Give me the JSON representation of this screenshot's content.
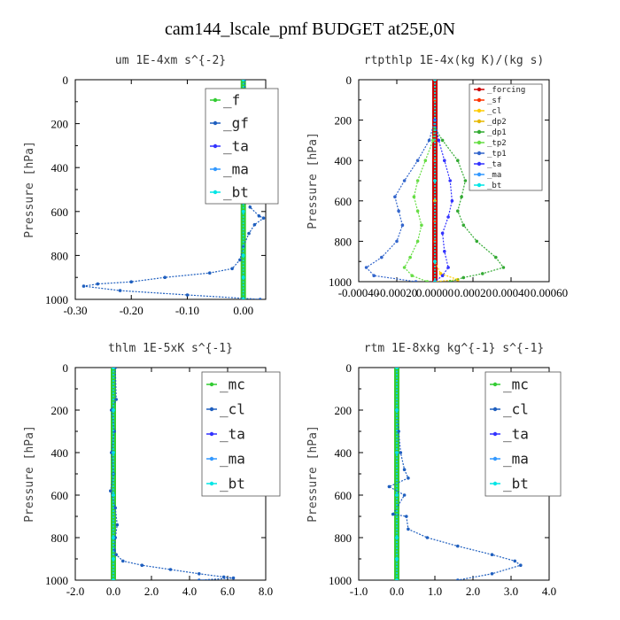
{
  "title": "cam144_lscale_pmf  BUDGET at25E,0N",
  "chart_data": [
    {
      "type": "line",
      "title": "um   1E-4xm  s^{-2}",
      "ylabel": "Pressure [hPa]",
      "xlim": [
        -0.3,
        0.04
      ],
      "ylim": [
        1000,
        0
      ],
      "xticks": [
        "-0.30",
        "-0.20",
        "-0.10",
        "0.00"
      ],
      "xtick_values": [
        -0.3,
        -0.2,
        -0.1,
        0.0
      ],
      "yticks": [
        "0",
        "200",
        "400",
        "600",
        "800",
        "1000"
      ],
      "ytick_values": [
        0,
        200,
        400,
        600,
        800,
        1000
      ],
      "legend_position": "top-right",
      "legend_font": 16,
      "series": [
        {
          "name": "_f",
          "color": "#33cc33",
          "x": [
            0.0,
            0.0,
            0.0,
            0.0,
            0.0,
            0.0,
            0.0,
            0.0,
            0.0,
            0.0,
            0.0
          ],
          "y": [
            0,
            100,
            200,
            300,
            400,
            500,
            600,
            700,
            800,
            900,
            1000
          ]
        },
        {
          "name": "_gf",
          "color": "#1f5fbf",
          "x": [
            0.002,
            0.004,
            0.018,
            0.032,
            0.03,
            0.014,
            -0.01,
            -0.01,
            0.005,
            0.01,
            0.003,
            0.012,
            0.028,
            0.036,
            0.02,
            0.01,
            0.0,
            -0.006,
            -0.02,
            -0.06,
            -0.14,
            -0.2,
            -0.26,
            -0.285,
            -0.22,
            -0.1,
            0.03
          ],
          "y": [
            0,
            80,
            110,
            130,
            160,
            200,
            240,
            300,
            360,
            420,
            500,
            580,
            620,
            630,
            660,
            700,
            760,
            820,
            860,
            880,
            900,
            920,
            930,
            940,
            960,
            980,
            1000
          ]
        },
        {
          "name": "_ta",
          "color": "#3333ff",
          "x": [
            0.0,
            0.0,
            0.0,
            0.0,
            0.0,
            0.0,
            0.0
          ],
          "y": [
            0,
            200,
            400,
            600,
            800,
            900,
            1000
          ]
        },
        {
          "name": "_ma",
          "color": "#3399ff",
          "x": [
            0.0,
            0.0,
            0.0,
            0.0,
            0.0,
            0.0,
            0.0
          ],
          "y": [
            0,
            200,
            400,
            600,
            800,
            900,
            1000
          ]
        },
        {
          "name": "_bt",
          "color": "#00e6e6",
          "x": [
            0.0,
            0.0,
            0.0,
            0.0,
            0.0,
            0.0,
            0.0
          ],
          "y": [
            0,
            200,
            400,
            600,
            800,
            900,
            1000
          ]
        }
      ]
    },
    {
      "type": "line",
      "title": "rtpthlp   1E-4x(kg K)/(kg s)",
      "ylabel": "Pressure [hPa]",
      "xlim": [
        -0.0004,
        0.0006
      ],
      "ylim": [
        1000,
        0
      ],
      "xticks": [
        "-0.00040",
        "-0.00020",
        "0.00000",
        "0.00020",
        "0.00040",
        "0.00060"
      ],
      "xtick_values": [
        -0.0004,
        -0.0002,
        0.0,
        0.0002,
        0.0004,
        0.0006
      ],
      "yticks": [
        "0",
        "200",
        "400",
        "600",
        "800",
        "1000"
      ],
      "ytick_values": [
        0,
        200,
        400,
        600,
        800,
        1000
      ],
      "legend_position": "top-right",
      "legend_font": 9,
      "series": [
        {
          "name": "_forcing",
          "color": "#cc0000",
          "x": [
            0.0,
            0.0,
            0.0,
            0.0,
            0.0,
            0.0,
            0.0,
            0.0,
            0.0,
            0.0,
            0.0
          ],
          "y": [
            0,
            100,
            200,
            300,
            400,
            500,
            600,
            700,
            800,
            900,
            1000
          ]
        },
        {
          "name": "_sf",
          "color": "#ff3300",
          "x": [
            0.0,
            0.0,
            0.0,
            0.0,
            0.0,
            0.0,
            0.0,
            0.0,
            0.0,
            0.0,
            0.0
          ],
          "y": [
            0,
            100,
            200,
            300,
            400,
            500,
            600,
            700,
            800,
            900,
            1000
          ]
        },
        {
          "name": "_cl",
          "color": "#ffcc00",
          "x": [
            0.0,
            0.0,
            0.0,
            3e-05,
            0.00012,
            0.0
          ],
          "y": [
            0,
            600,
            900,
            960,
            990,
            1000
          ]
        },
        {
          "name": "_dp2",
          "color": "#e6b800",
          "x": [
            0.0,
            0.0,
            0.0,
            0.0
          ],
          "y": [
            0,
            500,
            900,
            1000
          ]
        },
        {
          "name": "_dp1",
          "color": "#33aa33",
          "x": [
            0.0,
            0.0,
            4e-05,
            0.00012,
            0.00016,
            0.00014,
            0.00012,
            0.00015,
            0.00022,
            0.00032,
            0.00036,
            0.00025,
            0.00015,
            8e-05
          ],
          "y": [
            200,
            240,
            300,
            400,
            500,
            580,
            650,
            720,
            800,
            880,
            930,
            960,
            980,
            1000
          ]
        },
        {
          "name": "_tp2",
          "color": "#66dd44",
          "x": [
            0.0,
            -1e-05,
            -5e-05,
            -9e-05,
            -0.00011,
            -9e-05,
            -7e-05,
            -9e-05,
            -0.00013,
            -0.00016,
            -0.00012,
            -4e-05
          ],
          "y": [
            200,
            300,
            400,
            500,
            580,
            650,
            720,
            800,
            880,
            930,
            970,
            1000
          ]
        },
        {
          "name": "_tp1",
          "color": "#3366cc",
          "x": [
            0.0,
            -3e-05,
            -9e-05,
            -0.00016,
            -0.00021,
            -0.00019,
            -0.00017,
            -0.0002,
            -0.00028,
            -0.00036,
            -0.00032,
            -0.0001
          ],
          "y": [
            200,
            300,
            400,
            500,
            580,
            650,
            720,
            800,
            880,
            930,
            970,
            1000
          ]
        },
        {
          "name": "_ta",
          "color": "#3333ff",
          "x": [
            0.0,
            2e-05,
            5e-05,
            8e-05,
            9e-05,
            7e-05,
            4e-05,
            5e-05,
            7e-05,
            4e-05,
            0.0
          ],
          "y": [
            200,
            300,
            400,
            500,
            600,
            680,
            760,
            850,
            930,
            970,
            1000
          ]
        },
        {
          "name": "_ma",
          "color": "#3399ff",
          "x": [
            0.0,
            0.0,
            0.0,
            0.0
          ],
          "y": [
            0,
            500,
            900,
            1000
          ]
        },
        {
          "name": "_bt",
          "color": "#00e6e6",
          "x": [
            0.0,
            0.0,
            0.0,
            0.0
          ],
          "y": [
            0,
            500,
            900,
            1000
          ]
        }
      ]
    },
    {
      "type": "line",
      "title": "thlm   1E-5xK  s^{-1}",
      "ylabel": "Pressure [hPa]",
      "xlim": [
        -2.0,
        8.0
      ],
      "ylim": [
        1000,
        0
      ],
      "xticks": [
        "-2.0",
        "0.0",
        "2.0",
        "4.0",
        "6.0",
        "8.0"
      ],
      "xtick_values": [
        -2.0,
        0.0,
        2.0,
        4.0,
        6.0,
        8.0
      ],
      "yticks": [
        "0",
        "200",
        "400",
        "600",
        "800",
        "1000"
      ],
      "ytick_values": [
        0,
        200,
        400,
        600,
        800,
        1000
      ],
      "legend_position": "top-right",
      "legend_font": 16,
      "series": [
        {
          "name": "_mc",
          "color": "#33cc33",
          "x": [
            0.0,
            0.0,
            0.0,
            0.0,
            0.0,
            0.0,
            0.0,
            0.0,
            0.0,
            0.0,
            0.0
          ],
          "y": [
            0,
            100,
            200,
            300,
            400,
            500,
            600,
            700,
            800,
            900,
            1000
          ]
        },
        {
          "name": "_cl",
          "color": "#1f5fbf",
          "x": [
            0.1,
            0.15,
            -0.1,
            0.05,
            -0.1,
            0.0,
            -0.15,
            0.1,
            0.2,
            0.1,
            0.05,
            0.15,
            0.5,
            1.5,
            3.0,
            4.5,
            5.8,
            6.3,
            4.5
          ],
          "y": [
            0,
            150,
            200,
            300,
            400,
            500,
            580,
            660,
            740,
            800,
            860,
            880,
            910,
            930,
            950,
            970,
            985,
            990,
            1000
          ]
        },
        {
          "name": "_ta",
          "color": "#3333ff",
          "x": [
            0.0,
            0.0,
            0.0,
            0.0,
            0.0,
            0.0,
            0.0
          ],
          "y": [
            0,
            200,
            400,
            600,
            800,
            900,
            1000
          ]
        },
        {
          "name": "_ma",
          "color": "#3399ff",
          "x": [
            0.0,
            0.0,
            0.0,
            0.0,
            0.0,
            0.0,
            0.0
          ],
          "y": [
            0,
            200,
            400,
            600,
            800,
            900,
            1000
          ]
        },
        {
          "name": "_bt",
          "color": "#00e6e6",
          "x": [
            0.0,
            0.0,
            0.0,
            0.0,
            0.0,
            0.0,
            0.0
          ],
          "y": [
            0,
            200,
            400,
            600,
            800,
            900,
            1000
          ]
        }
      ]
    },
    {
      "type": "line",
      "title": "rtm   1E-8xkg  kg^{-1}  s^{-1}",
      "ylabel": "Pressure [hPa]",
      "xlim": [
        -1.0,
        4.0
      ],
      "ylim": [
        1000,
        0
      ],
      "xticks": [
        "-1.0",
        "0.0",
        "1.0",
        "2.0",
        "3.0",
        "4.0"
      ],
      "xtick_values": [
        -1.0,
        0.0,
        1.0,
        2.0,
        3.0,
        4.0
      ],
      "yticks": [
        "0",
        "200",
        "400",
        "600",
        "800",
        "1000"
      ],
      "ytick_values": [
        0,
        200,
        400,
        600,
        800,
        1000
      ],
      "legend_position": "top-right",
      "legend_font": 16,
      "series": [
        {
          "name": "_mc",
          "color": "#33cc33",
          "x": [
            0.0,
            0.0,
            0.0,
            0.0,
            0.0,
            0.0,
            0.0,
            0.0,
            0.0,
            0.0,
            0.0
          ],
          "y": [
            0,
            100,
            200,
            300,
            400,
            500,
            600,
            700,
            800,
            900,
            1000
          ]
        },
        {
          "name": "_cl",
          "color": "#1f5fbf",
          "x": [
            0.0,
            0.0,
            0.05,
            0.1,
            0.2,
            0.3,
            -0.2,
            0.2,
            -0.1,
            0.25,
            0.3,
            0.8,
            1.6,
            2.5,
            3.1,
            3.25,
            2.5,
            1.6
          ],
          "y": [
            0,
            200,
            300,
            400,
            480,
            520,
            560,
            600,
            690,
            700,
            760,
            800,
            840,
            880,
            910,
            930,
            970,
            1000
          ]
        },
        {
          "name": "_ta",
          "color": "#3333ff",
          "x": [
            0.0,
            0.0,
            0.0,
            0.0,
            0.0,
            0.0,
            0.0
          ],
          "y": [
            0,
            200,
            400,
            600,
            800,
            900,
            1000
          ]
        },
        {
          "name": "_ma",
          "color": "#3399ff",
          "x": [
            0.0,
            0.0,
            0.0,
            0.0,
            0.0,
            0.0,
            0.0
          ],
          "y": [
            0,
            200,
            400,
            600,
            800,
            900,
            1000
          ]
        },
        {
          "name": "_bt",
          "color": "#00e6e6",
          "x": [
            0.0,
            0.0,
            0.0,
            0.0,
            0.0,
            0.0,
            0.0
          ],
          "y": [
            0,
            200,
            400,
            600,
            800,
            900,
            1000
          ]
        }
      ]
    }
  ]
}
